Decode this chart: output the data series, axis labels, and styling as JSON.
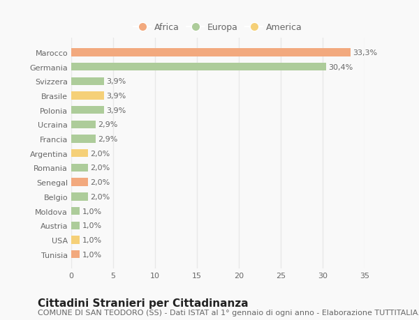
{
  "countries": [
    "Marocco",
    "Germania",
    "Svizzera",
    "Brasile",
    "Polonia",
    "Ucraina",
    "Francia",
    "Argentina",
    "Romania",
    "Senegal",
    "Belgio",
    "Moldova",
    "Austria",
    "USA",
    "Tunisia"
  ],
  "values": [
    33.3,
    30.4,
    3.9,
    3.9,
    3.9,
    2.9,
    2.9,
    2.0,
    2.0,
    2.0,
    2.0,
    1.0,
    1.0,
    1.0,
    1.0
  ],
  "labels": [
    "33,3%",
    "30,4%",
    "3,9%",
    "3,9%",
    "3,9%",
    "2,9%",
    "2,9%",
    "2,0%",
    "2,0%",
    "2,0%",
    "2,0%",
    "1,0%",
    "1,0%",
    "1,0%",
    "1,0%"
  ],
  "colors": [
    "#F2A97E",
    "#ADCC9A",
    "#ADCC9A",
    "#F5D078",
    "#ADCC9A",
    "#ADCC9A",
    "#ADCC9A",
    "#F5D078",
    "#ADCC9A",
    "#F2A97E",
    "#ADCC9A",
    "#ADCC9A",
    "#ADCC9A",
    "#F5D078",
    "#F2A97E"
  ],
  "legend_labels": [
    "Africa",
    "Europa",
    "America"
  ],
  "legend_colors": [
    "#F2A97E",
    "#ADCC9A",
    "#F5D078"
  ],
  "title": "Cittadini Stranieri per Cittadinanza",
  "subtitle": "COMUNE DI SAN TEODORO (SS) - Dati ISTAT al 1° gennaio di ogni anno - Elaborazione TUTTITALIA.IT",
  "xlim": [
    0,
    35
  ],
  "xticks": [
    0,
    5,
    10,
    15,
    20,
    25,
    30,
    35
  ],
  "background_color": "#f9f9f9",
  "grid_color": "#e8e8e8",
  "bar_height": 0.55,
  "title_fontsize": 11,
  "subtitle_fontsize": 8,
  "label_fontsize": 8,
  "tick_fontsize": 8,
  "legend_fontsize": 9
}
